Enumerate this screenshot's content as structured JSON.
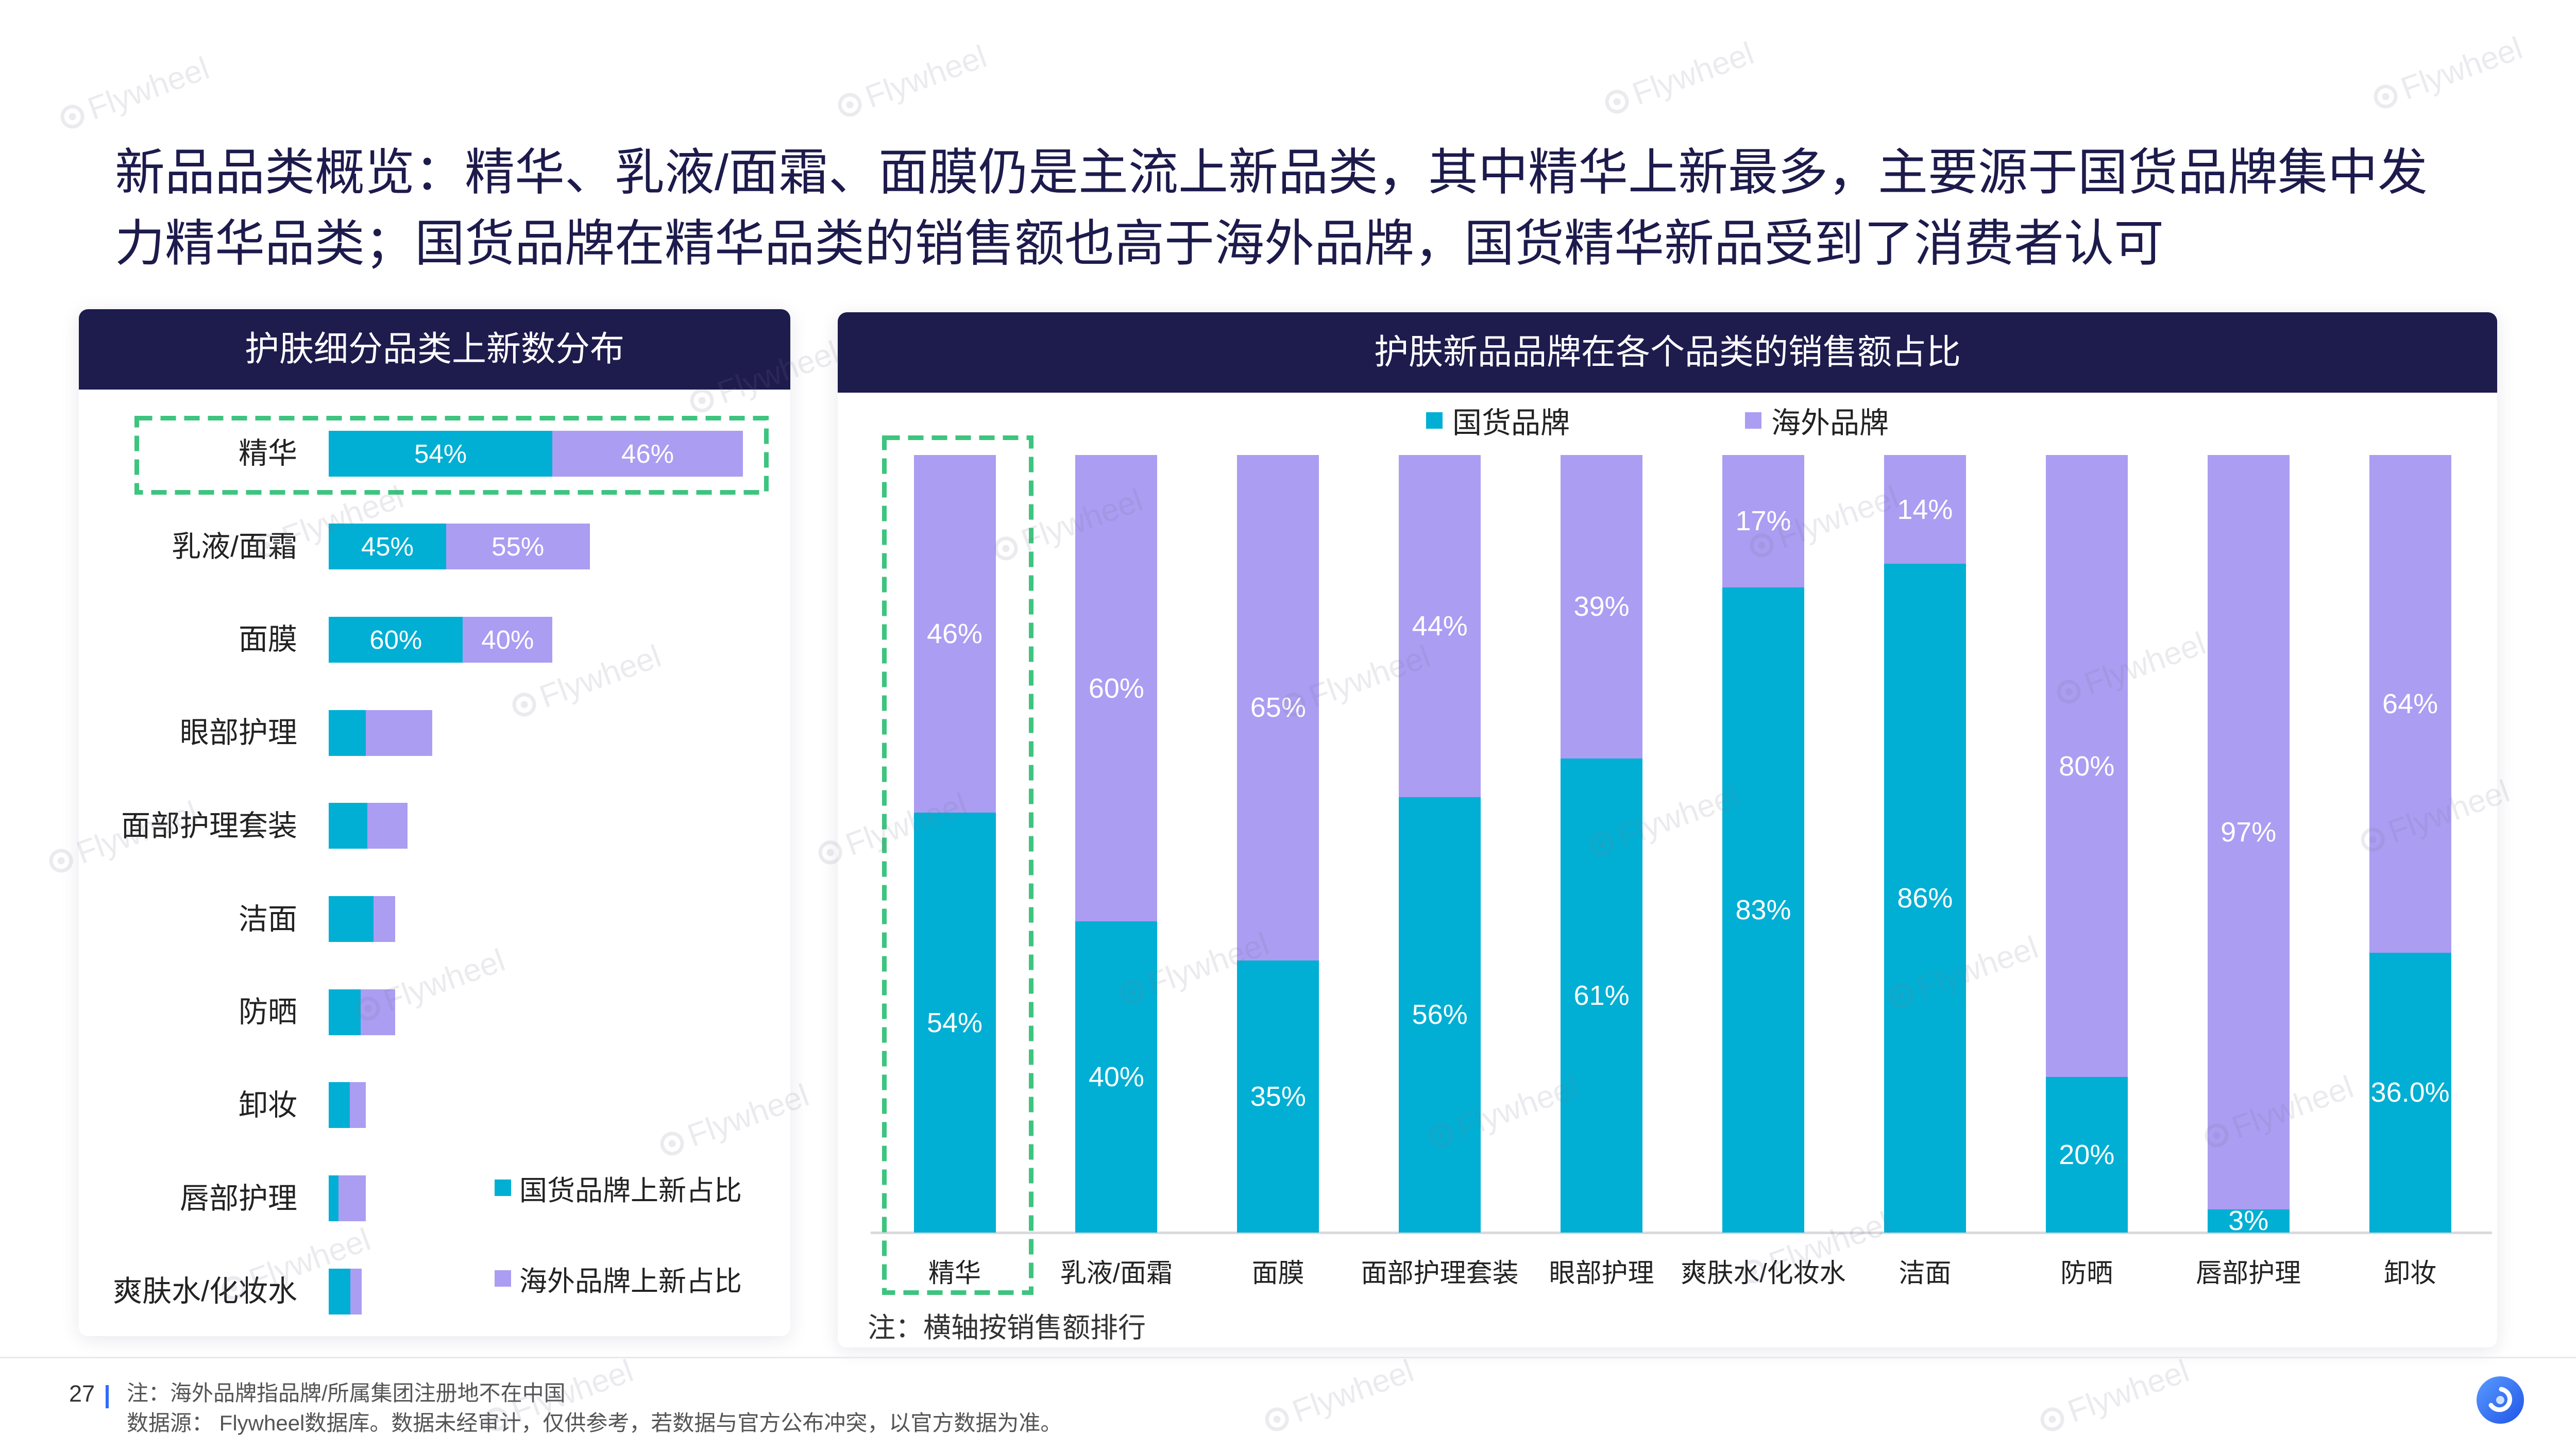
{
  "title": [
    "新品品类概览：精华、乳液/面霜、面膜仍是主流上新品类，其中精华上新最多，主要源于国货品牌集中发",
    "力精华品类；国货品牌在精华品类的销售额也高于海外品牌，国货精华新品受到了消费者认可"
  ],
  "colors": {
    "title_text": "#1D1B4C",
    "panel_header": "#1E1B4D",
    "highlight_dash": "#3DC47E",
    "page_accent": "#2F6BFF"
  },
  "watermark": "Flywheel",
  "chart_data": [
    {
      "type": "bar",
      "orientation": "horizontal",
      "stacked": true,
      "title": "护肤细分品类上新数分布",
      "categories": [
        "精华",
        "乳液/面霜",
        "面膜",
        "眼部护理",
        "面部护理套装",
        "洁面",
        "防晒",
        "卸妆",
        "唇部护理",
        "爽肤水/化妆水"
      ],
      "relative_new_count": [
        100,
        63,
        54,
        25,
        19,
        16,
        16,
        9,
        9,
        8
      ],
      "series": [
        {
          "name": "国货品牌上新占比",
          "color": "#00AFD3",
          "values": [
            54,
            45,
            60,
            36,
            49,
            68,
            48,
            57,
            26,
            65
          ],
          "labels": [
            "54%",
            "45%",
            "60%",
            "",
            "",
            "",
            "",
            "",
            "",
            ""
          ]
        },
        {
          "name": "海外品牌上新占比",
          "color": "#AB9DF2",
          "values": [
            46,
            55,
            40,
            64,
            51,
            32,
            52,
            43,
            74,
            35
          ],
          "labels": [
            "46%",
            "55%",
            "40%",
            "",
            "",
            "",
            "",
            "",
            "",
            ""
          ]
        }
      ],
      "highlight_index": 0,
      "legend": "bottom-right"
    },
    {
      "type": "bar",
      "orientation": "vertical",
      "stacked": true,
      "title": "护肤新品品牌在各个品类的销售额占比",
      "categories": [
        "精华",
        "乳液/面霜",
        "面膜",
        "面部护理套装",
        "眼部护理",
        "爽肤水/化妆水",
        "洁面",
        "防晒",
        "唇部护理",
        "卸妆"
      ],
      "series": [
        {
          "name": "国货品牌",
          "color": "#00AFD3",
          "values": [
            54,
            40,
            35,
            56,
            61,
            83,
            86,
            20,
            3,
            36.0
          ],
          "labels": [
            "54%",
            "40%",
            "35%",
            "56%",
            "61%",
            "83%",
            "86%",
            "20%",
            "3%",
            "36.0%"
          ]
        },
        {
          "name": "海外品牌",
          "color": "#AB9DF2",
          "values": [
            46,
            60,
            65,
            44,
            39,
            17,
            14,
            80,
            97,
            64
          ],
          "labels": [
            "46%",
            "60%",
            "65%",
            "44%",
            "39%",
            "17%",
            "14%",
            "80%",
            "97%",
            "64%"
          ]
        }
      ],
      "ylim": [
        0,
        100
      ],
      "highlight_index": 0,
      "legend": "top-center",
      "note": "注：横轴按销售额排行"
    }
  ],
  "footer": {
    "page_number": "27",
    "footnote": "注：海外品牌指品牌/所属集团注册地不在中国",
    "source": "数据源： Flywheel数据库。数据未经审计，仅供参考，若数据与官方公布冲突，以官方数据为准。"
  }
}
